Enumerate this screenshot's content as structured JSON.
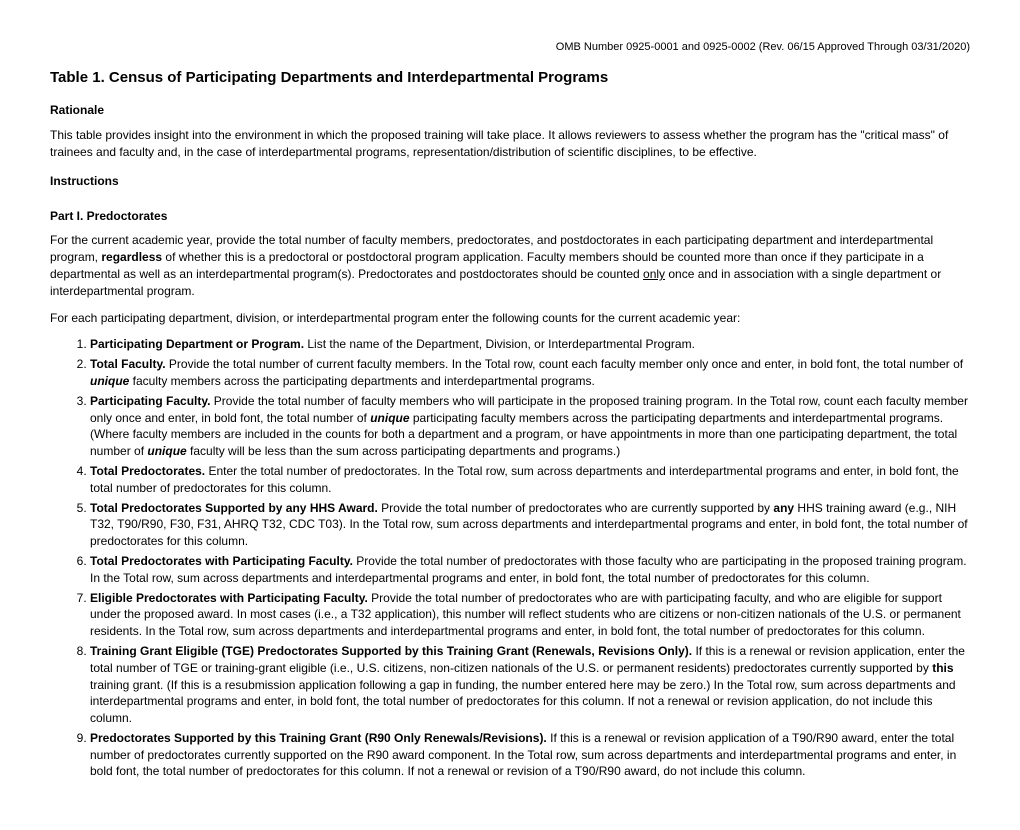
{
  "omb": "OMB Number 0925-0001 and 0925-0002 (Rev. 06/15 Approved Through 03/31/2020)",
  "title": "Table 1. Census of Participating Departments and Interdepartmental Programs",
  "rationale_h": "Rationale",
  "rationale_p": "This table provides insight into the environment in which the proposed training will take place. It allows reviewers to assess whether the program has the \"critical mass\" of trainees and faculty and, in the case of interdepartmental programs, representation/distribution of scientific disciplines, to be effective.",
  "instructions_h": "Instructions",
  "part1_h": "Part I. Predoctorates",
  "part1_p1_a": "For the current academic year, provide the total number of faculty members, predoctorates, and postdoctorates in each participating department and interdepartmental program, ",
  "part1_p1_b": "regardless",
  "part1_p1_c": " of whether this is a predoctoral or postdoctoral program application. Faculty members should be counted more than once if they participate in a departmental as well as an interdepartmental program(s). Predoctorates and postdoctorates should be counted ",
  "part1_p1_d": "only",
  "part1_p1_e": " once and in association with a single department or interdepartmental program.",
  "part1_p2": "For each participating department, division, or interdepartmental program enter the following counts for the current academic year:",
  "li1_b": "Participating Department or Program.",
  "li1_t": " List the name of the Department, Division, or Interdepartmental Program.",
  "li2_b": "Total Faculty.",
  "li2_t1": " Provide the total number of current faculty members. In the Total row, count each faculty member only once and enter, in bold font, the total number of ",
  "li2_i": "unique",
  "li2_t2": " faculty members across the participating departments and interdepartmental programs.",
  "li3_b": "Participating Faculty.",
  "li3_t1": " Provide the total number of faculty members who will participate in the proposed training program. In the Total row, count each faculty member only once and enter, in bold font, the total number of ",
  "li3_i1": "unique",
  "li3_t2": " participating faculty members across the participating departments and interdepartmental programs. (Where faculty members are included in the counts for both a department and a program, or have appointments in more than one participating department, the total number of ",
  "li3_i2": "unique",
  "li3_t3": " faculty will be less than the sum across participating departments and programs.)",
  "li4_b": "Total Predoctorates.",
  "li4_t": " Enter the total number of predoctorates. In the Total row, sum across departments and interdepartmental programs and enter, in bold font, the total number of predoctorates for this column.",
  "li5_b": "Total Predoctorates Supported by any HHS Award.",
  "li5_t1": " Provide the total number of predoctorates who are currently supported by ",
  "li5_b2": "any",
  "li5_t2": " HHS training award (e.g., NIH T32, T90/R90, F30, F31, AHRQ T32, CDC T03). In the Total row, sum across departments and interdepartmental programs and enter, in bold font, the total number of predoctorates for this column.",
  "li6_b": "Total Predoctorates with Participating Faculty.",
  "li6_t": " Provide the total number of predoctorates with those faculty who are participating in the proposed training program. In the Total row, sum across departments and interdepartmental programs and enter, in bold font, the total number of predoctorates for this column.",
  "li7_b": "Eligible Predoctorates with Participating Faculty.",
  "li7_t": " Provide the total number of predoctorates who are with participating faculty, and who are eligible for support under the proposed award. In most cases (i.e., a T32 application), this number will reflect students who are citizens or non-citizen nationals of the U.S. or permanent residents. In the Total row, sum across departments and interdepartmental programs and enter, in bold font, the total number of predoctorates for this column.",
  "li8_b": "Training Grant Eligible (TGE) Predoctorates Supported by this Training Grant (Renewals, Revisions Only).",
  "li8_t1": " If this is a renewal or revision application, enter the total number of TGE or training-grant eligible (i.e., U.S. citizens, non-citizen nationals of the U.S. or permanent residents) predoctorates currently supported by ",
  "li8_b2": "this",
  "li8_t2": " training grant. (If this is a resubmission application following a gap in funding, the number entered here may be zero.) In the Total row, sum across departments and interdepartmental programs and enter, in bold font, the total number of predoctorates for this column. If not a renewal or revision application, do not include this column.",
  "li9_b": "Predoctorates Supported by this Training Grant (R90 Only Renewals/Revisions).",
  "li9_t": " If this is a renewal or revision application of a T90/R90 award, enter the total number of predoctorates currently supported on the R90 award component. In the Total row, sum across departments and interdepartmental programs and enter, in bold font, the total number of predoctorates for this column. If not a renewal or revision of a T90/R90 award, do not include this column."
}
